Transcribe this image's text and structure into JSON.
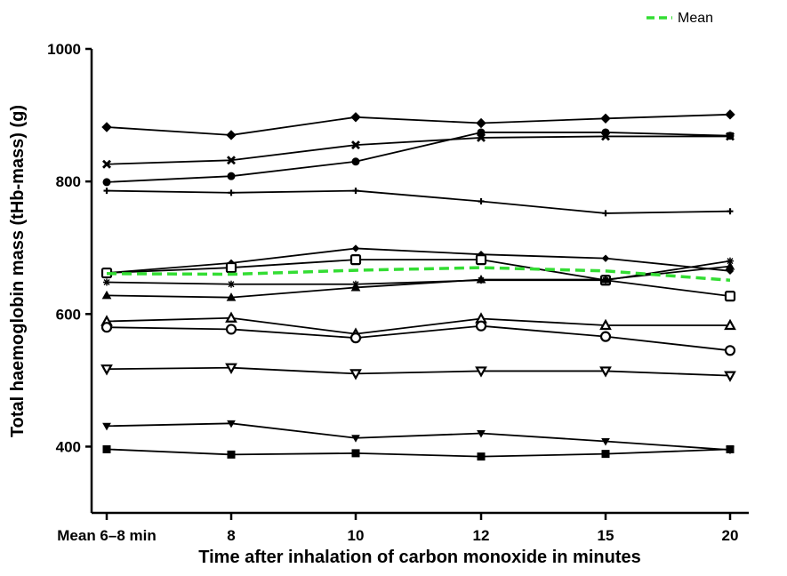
{
  "chart_data": {
    "type": "line",
    "xlabel": "Time after inhalation of carbon monoxide in minutes",
    "ylabel": "Total haemoglobin mass (tHb-mass) (g)",
    "categories": [
      "Mean 6–8 min",
      "8",
      "10",
      "12",
      "15",
      "20"
    ],
    "y_ticks": [
      "400",
      "600",
      "800",
      "1000"
    ],
    "ylim": [
      300,
      1000
    ],
    "grid": false,
    "legend": {
      "position": "top-right",
      "label": "Mean",
      "color": "#33dd33"
    },
    "series": [
      {
        "marker": "diamond-filled",
        "values": [
          882,
          870,
          897,
          888,
          895,
          901
        ]
      },
      {
        "marker": "x",
        "values": [
          826,
          832,
          855,
          866,
          868,
          868
        ]
      },
      {
        "marker": "hexagon-filled",
        "values": [
          799,
          808,
          830,
          874,
          874,
          869
        ]
      },
      {
        "marker": "plus",
        "values": [
          786,
          783,
          786,
          770,
          752,
          755
        ]
      },
      {
        "marker": "small-diamond",
        "values": [
          662,
          677,
          699,
          690,
          684,
          665
        ]
      },
      {
        "marker": "open-square",
        "values": [
          662,
          670,
          682,
          682,
          651,
          627
        ]
      },
      {
        "marker": "star",
        "values": [
          648,
          645,
          645,
          651,
          651,
          680
        ]
      },
      {
        "marker": "triangle-up",
        "values": [
          628,
          625,
          640,
          652,
          652,
          672
        ]
      },
      {
        "marker": "open-triangle",
        "values": [
          589,
          594,
          570,
          593,
          583,
          583
        ]
      },
      {
        "marker": "open-circle",
        "values": [
          580,
          577,
          564,
          582,
          566,
          545
        ]
      },
      {
        "marker": "open-triangle-down",
        "values": [
          517,
          519,
          510,
          514,
          514,
          507
        ]
      },
      {
        "marker": "triangle-down",
        "values": [
          431,
          435,
          413,
          420,
          408,
          395
        ]
      },
      {
        "marker": "square",
        "values": [
          396,
          388,
          390,
          385,
          389,
          396
        ]
      }
    ],
    "mean_series": {
      "name": "Mean",
      "values": [
        661,
        660,
        666,
        670,
        665,
        651
      ]
    }
  }
}
